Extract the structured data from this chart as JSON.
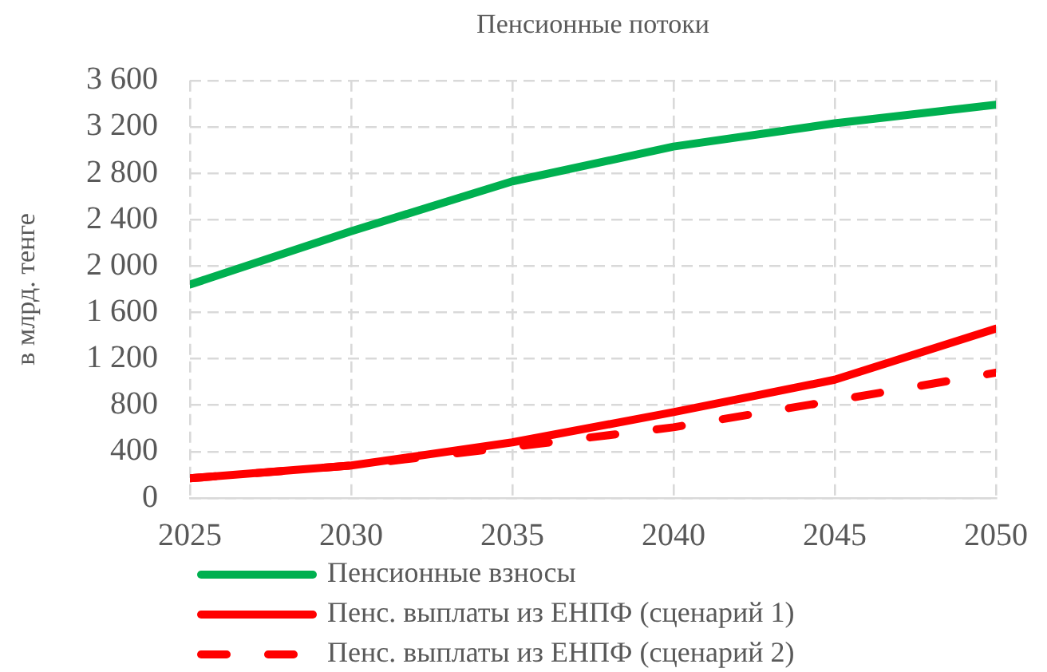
{
  "chart_data": {
    "type": "line",
    "title": "Пенсионные потоки",
    "ylabel": "в млрд. тенге",
    "x": [
      2025,
      2030,
      2035,
      2040,
      2045,
      2050
    ],
    "xlim": [
      2025,
      2050
    ],
    "xticks": [
      2025,
      2030,
      2035,
      2040,
      2045,
      2050
    ],
    "ylim": [
      0,
      3600
    ],
    "yticks": [
      0,
      400,
      800,
      {
        "value": 1200,
        "label": "1 200"
      },
      {
        "value": 1600,
        "label": "1 600"
      },
      {
        "value": 2000,
        "label": "2 000"
      },
      {
        "value": 2400,
        "label": "2 400"
      },
      {
        "value": 2800,
        "label": "2 800"
      },
      {
        "value": 3200,
        "label": "3 200"
      },
      {
        "value": 3600,
        "label": "3 600"
      }
    ],
    "series": [
      {
        "name": "Пенсионные взносы",
        "color": "#00b050",
        "values": [
          1840,
          2300,
          2730,
          3030,
          3230,
          3390
        ]
      },
      {
        "name": "Пенс. выплаты из ЕНПФ (сценарий 1)",
        "color": "#ff0000",
        "values": [
          170,
          280,
          480,
          740,
          1020,
          1460
        ]
      },
      {
        "name": "Пенс. выплаты из ЕНПФ (сценарий 2)",
        "color": "#ff0000",
        "values": [
          170,
          280,
          440,
          610,
          840,
          1080
        ],
        "line_style": "dashed"
      }
    ],
    "grid": true,
    "legend": "bottom left",
    "marker": "none"
  }
}
